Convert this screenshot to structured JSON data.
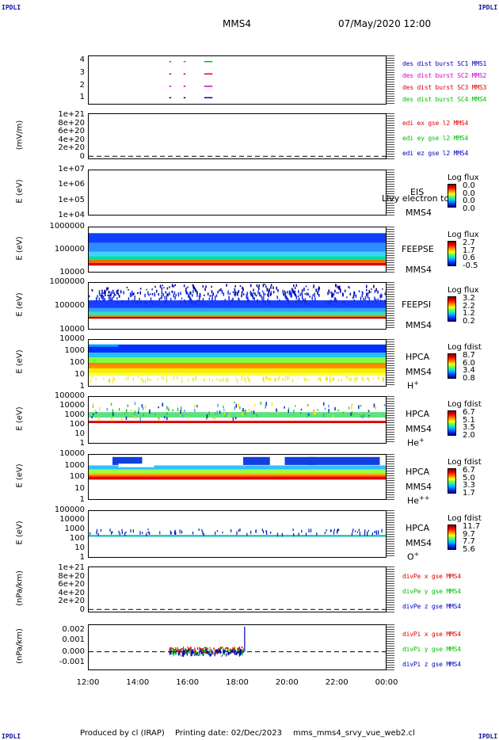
{
  "header": {
    "corner": "IPDLI",
    "spacecraft": "MMS4",
    "datetime": "07/May/2020 12:00"
  },
  "footer": {
    "produced_by": "Produced by cl (IRAP)",
    "printing_date": "Printing date: 02/Dec/2023",
    "file": "mms_mms4_srvy_vue_web2.cl"
  },
  "x_ticks": [
    "12:00",
    "14:00",
    "16:00",
    "18:00",
    "20:00",
    "22:00",
    "00:00"
  ],
  "colors": {
    "red": "#e00000",
    "green": "#00c000",
    "blue": "#0000c0",
    "magenta": "#d000d0"
  },
  "panels": {
    "burst": {
      "yticks": [
        "4",
        "3",
        "2",
        "1"
      ],
      "legend": [
        {
          "text": "des dist burst SC1 MMS1",
          "color": "#0000c0"
        },
        {
          "text": "des dist burst SC2 MMS2",
          "color": "#d000d0"
        },
        {
          "text": "des dist burst SC3 MMS3",
          "color": "#e00000"
        },
        {
          "text": "des dist burst SC4 MMS4",
          "color": "#00c000"
        }
      ]
    },
    "edi": {
      "ylabel": "(mV/m)",
      "yticks": [
        "1e+21",
        "8e+20",
        "6e+20",
        "4e+20",
        "2e+20",
        "0"
      ],
      "legend": [
        {
          "text": "edi ex gse l2 MMS4",
          "color": "#e00000"
        },
        {
          "text": "edi ey gse l2 MMS4",
          "color": "#00c000"
        },
        {
          "text": "edi ez gse l2 MMS4",
          "color": "#0000c0"
        }
      ]
    },
    "eis": {
      "ylabel": "E (eV)",
      "yticks": [
        "1e+07",
        "1e+06",
        "1e+05",
        "1e+04"
      ],
      "inst": "EIS",
      "extra": "Llvy electron tc",
      "sc": "MMS4",
      "cbtitle": "Log flux",
      "cbvals": [
        "0.0",
        "0.0",
        "0.0",
        "0.0"
      ]
    },
    "feepse": {
      "ylabel": "E (eV)",
      "yticks": [
        "1000000",
        "100000",
        "10000"
      ],
      "inst": "FEEPSE",
      "sc": "MMS4",
      "cbtitle": "Log flux",
      "cbvals": [
        "2.7",
        "1.7",
        "0.6",
        "-0.5"
      ]
    },
    "feepsi": {
      "ylabel": "E (eV)",
      "yticks": [
        "1000000",
        "100000",
        "10000"
      ],
      "inst": "FEEPSI",
      "sc": "MMS4",
      "cbtitle": "Log flux",
      "cbvals": [
        "3.2",
        "2.2",
        "1.2",
        "0.2"
      ]
    },
    "hpca_h": {
      "ylabel": "E (eV)",
      "yticks": [
        "10000",
        "1000",
        "100",
        "10",
        "1"
      ],
      "inst": "HPCA",
      "sc": "MMS4",
      "species": "H",
      "charge": "+",
      "cbtitle": "Log fdist",
      "cbvals": [
        "8.7",
        "6.0",
        "3.4",
        "0.8"
      ]
    },
    "hpca_he": {
      "ylabel": "E (eV)",
      "yticks": [
        "100000",
        "10000",
        "1000",
        "100",
        "10",
        "1"
      ],
      "inst": "HPCA",
      "sc": "MMS4",
      "species": "He",
      "charge": "+",
      "cbtitle": "Log fdist",
      "cbvals": [
        "6.7",
        "5.1",
        "3.5",
        "2.0"
      ]
    },
    "hpca_he2": {
      "ylabel": "E (eV)",
      "yticks": [
        "10000",
        "1000",
        "100",
        "10",
        "1"
      ],
      "inst": "HPCA",
      "sc": "MMS4",
      "species": "He",
      "charge": "++",
      "cbtitle": "Log fdist",
      "cbvals": [
        "6.7",
        "5.0",
        "3.3",
        "1.7"
      ]
    },
    "hpca_o": {
      "ylabel": "E (eV)",
      "yticks": [
        "100000",
        "10000",
        "1000",
        "100",
        "10",
        "1"
      ],
      "inst": "HPCA",
      "sc": "MMS4",
      "species": "O",
      "charge": "+",
      "cbtitle": "Log fdist",
      "cbvals": [
        "11.7",
        "9.7",
        "7.7",
        "5.6"
      ]
    },
    "divpe": {
      "ylabel": "(nPa/km)",
      "yticks": [
        "1e+21",
        "8e+20",
        "6e+20",
        "4e+20",
        "2e+20",
        "0"
      ],
      "legend": [
        {
          "text": "divPe x gse MMS4",
          "color": "#e00000"
        },
        {
          "text": "divPe y gse MMS4",
          "color": "#00c000"
        },
        {
          "text": "divPe z gse MMS4",
          "color": "#0000c0"
        }
      ]
    },
    "divpi": {
      "ylabel": "(nPa/km)",
      "yticks": [
        "0.002",
        "0.001",
        "0.000",
        "-0.001"
      ],
      "legend": [
        {
          "text": "divPi x gse MMS4",
          "color": "#e00000"
        },
        {
          "text": "divPi y gse MMS4",
          "color": "#00c000"
        },
        {
          "text": "divPi z gse MMS4",
          "color": "#0000c0"
        }
      ]
    }
  },
  "chart_data": [
    {
      "type": "scatter",
      "x_range": [
        "12:00",
        "00:00"
      ],
      "ylim": [
        0.5,
        4.5
      ],
      "series": [
        {
          "name": "des dist burst SC1 MMS1",
          "y": 1,
          "intervals": [
            [
              "15:15",
              "15:20"
            ],
            [
              "15:50",
              "15:55"
            ],
            [
              "16:40",
              "17:00"
            ]
          ]
        },
        {
          "name": "des dist burst SC2 MMS2",
          "y": 2,
          "intervals": [
            [
              "15:15",
              "15:20"
            ],
            [
              "15:50",
              "15:55"
            ],
            [
              "16:40",
              "17:00"
            ]
          ]
        },
        {
          "name": "des dist burst SC3 MMS3",
          "y": 3,
          "intervals": [
            [
              "15:15",
              "15:20"
            ],
            [
              "15:50",
              "15:55"
            ],
            [
              "16:40",
              "17:00"
            ]
          ]
        },
        {
          "name": "des dist burst SC4 MMS4",
          "y": 4,
          "intervals": [
            [
              "15:15",
              "15:20"
            ],
            [
              "15:50",
              "15:55"
            ],
            [
              "16:40",
              "17:00"
            ]
          ]
        }
      ]
    },
    {
      "type": "line",
      "title": "",
      "ylabel": "(mV/m)",
      "ylim": [
        0,
        1e+21
      ],
      "series": [
        {
          "name": "edi ex gse l2 MMS4",
          "values": []
        },
        {
          "name": "edi ey gse l2 MMS4",
          "values": []
        },
        {
          "name": "edi ez gse l2 MMS4",
          "values": []
        }
      ]
    },
    {
      "type": "heatmap",
      "ylabel": "E (eV)",
      "yscale": "log",
      "ylim": [
        10000.0,
        10000000.0
      ]
    },
    {
      "type": "heatmap",
      "ylabel": "E (eV)",
      "yscale": "log",
      "ylim": [
        10000.0,
        1000000.0
      ],
      "x_range": [
        "12:00",
        "00:00"
      ]
    },
    {
      "type": "heatmap",
      "ylabel": "E (eV)",
      "yscale": "log",
      "ylim": [
        10000.0,
        1000000.0
      ],
      "x_range": [
        "12:00",
        "00:00"
      ]
    },
    {
      "type": "heatmap",
      "ylabel": "E (eV)",
      "yscale": "log",
      "ylim": [
        1,
        10000.0
      ],
      "x_range": [
        "12:00",
        "00:00"
      ]
    },
    {
      "type": "heatmap",
      "ylabel": "E (eV)",
      "yscale": "log",
      "ylim": [
        1,
        100000.0
      ],
      "x_range": [
        "12:00",
        "00:00"
      ]
    },
    {
      "type": "heatmap",
      "ylabel": "E (eV)",
      "yscale": "log",
      "ylim": [
        1,
        10000.0
      ],
      "x_range": [
        "12:00",
        "00:00"
      ]
    },
    {
      "type": "heatmap",
      "ylabel": "E (eV)",
      "yscale": "log",
      "ylim": [
        1,
        100000.0
      ],
      "x_range": [
        "12:00",
        "00:00"
      ]
    },
    {
      "type": "line",
      "ylabel": "(nPa/km)",
      "ylim": [
        0,
        1e+21
      ],
      "series": [
        {
          "name": "divPe x gse MMS4",
          "values": []
        },
        {
          "name": "divPe y gse MMS4",
          "values": []
        },
        {
          "name": "divPe z gse MMS4",
          "values": []
        }
      ]
    },
    {
      "type": "line",
      "ylabel": "(nPa/km)",
      "ylim": [
        -0.0015,
        0.0025
      ],
      "x_range": [
        "12:00",
        "00:00"
      ],
      "series": [
        {
          "name": "divPi x gse MMS4",
          "time_span": [
            "15:15",
            "18:15"
          ],
          "range": [
            -0.0012,
            0.0006
          ]
        },
        {
          "name": "divPi y gse MMS4",
          "time_span": [
            "15:15",
            "18:15"
          ],
          "range": [
            -0.0008,
            0.0008
          ]
        },
        {
          "name": "divPi z gse MMS4",
          "time_span": [
            "15:15",
            "18:20"
          ],
          "range": [
            -0.0006,
            0.0022
          ]
        }
      ]
    }
  ]
}
